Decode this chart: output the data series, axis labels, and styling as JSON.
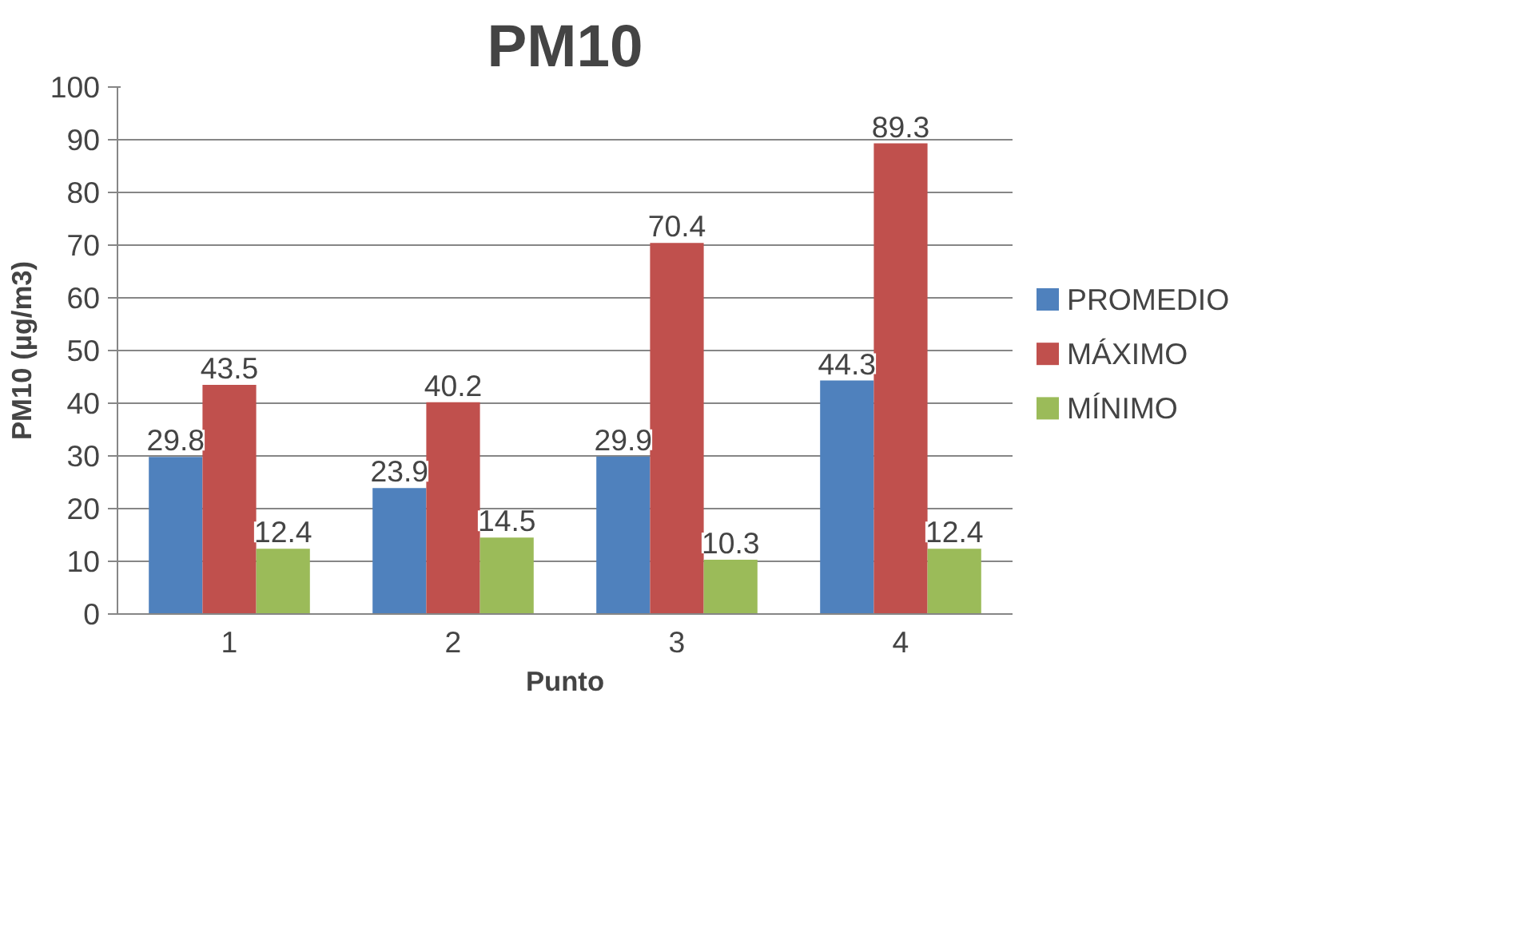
{
  "chart_data": {
    "type": "bar",
    "title": "PM10",
    "xlabel": "Punto",
    "ylabel": "PM10 (µg/m3)",
    "categories": [
      "1",
      "2",
      "3",
      "4"
    ],
    "series": [
      {
        "name": "PROMEDIO",
        "color": "#4f81bd",
        "values": [
          29.8,
          23.9,
          29.9,
          44.3
        ]
      },
      {
        "name": "MÁXIMO",
        "color": "#c0504d",
        "values": [
          43.5,
          40.2,
          70.4,
          89.3
        ]
      },
      {
        "name": "MÍNIMO",
        "color": "#9bbb59",
        "values": [
          12.4,
          14.5,
          10.3,
          12.4
        ]
      }
    ],
    "ylim": [
      0,
      100
    ],
    "yticks": [
      0,
      10,
      20,
      30,
      40,
      50,
      60,
      70,
      80,
      90,
      100
    ],
    "grid": "y",
    "legend": "right",
    "data_labels": true
  }
}
